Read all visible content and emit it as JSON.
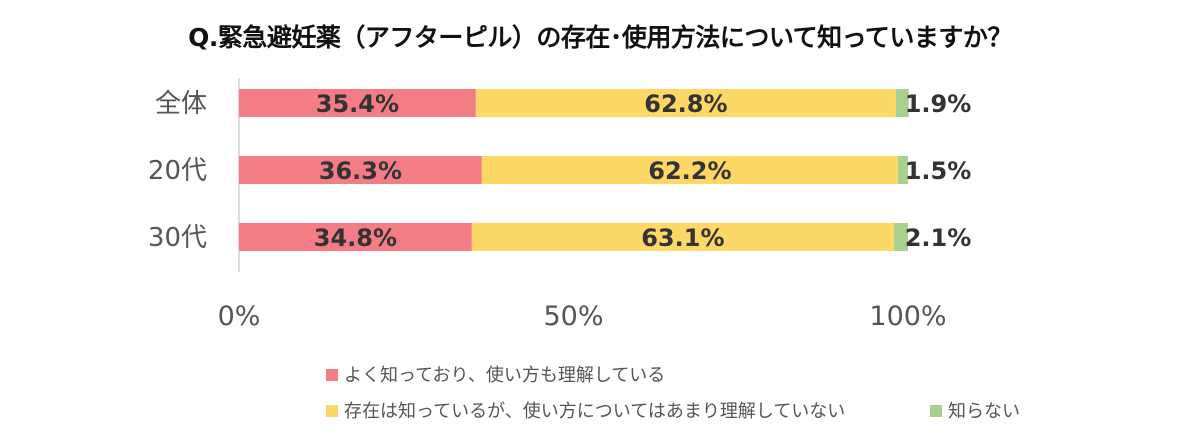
{
  "chart_data": {
    "type": "bar",
    "orientation": "horizontal",
    "stacked": true,
    "percent_stacked": true,
    "title": "Q.緊急避妊薬（アフターピル）の存在･使用方法について知っていますか？",
    "categories": [
      "全体",
      "20代",
      "30代"
    ],
    "series": [
      {
        "name": "よく知っており、使い方も理解している",
        "values": [
          35.4,
          36.3,
          34.8
        ],
        "labels": [
          "35.4%",
          "36.3%",
          "34.8%"
        ],
        "color": "#F47C85"
      },
      {
        "name": "存在は知っているが、使い方についてはあまり理解していない",
        "values": [
          62.8,
          62.2,
          63.1
        ],
        "labels": [
          "62.8%",
          "62.2%",
          "63.1%"
        ],
        "color": "#FDD866"
      },
      {
        "name": "知らない",
        "values": [
          1.9,
          1.5,
          2.1
        ],
        "labels": [
          "1.9%",
          "1.5%",
          "2.1%"
        ],
        "color": "#A9D18E"
      }
    ],
    "xlim": [
      0,
      100
    ],
    "xticks": [
      "0%",
      "50%",
      "100%"
    ],
    "grid": false,
    "legend_position": "bottom"
  }
}
